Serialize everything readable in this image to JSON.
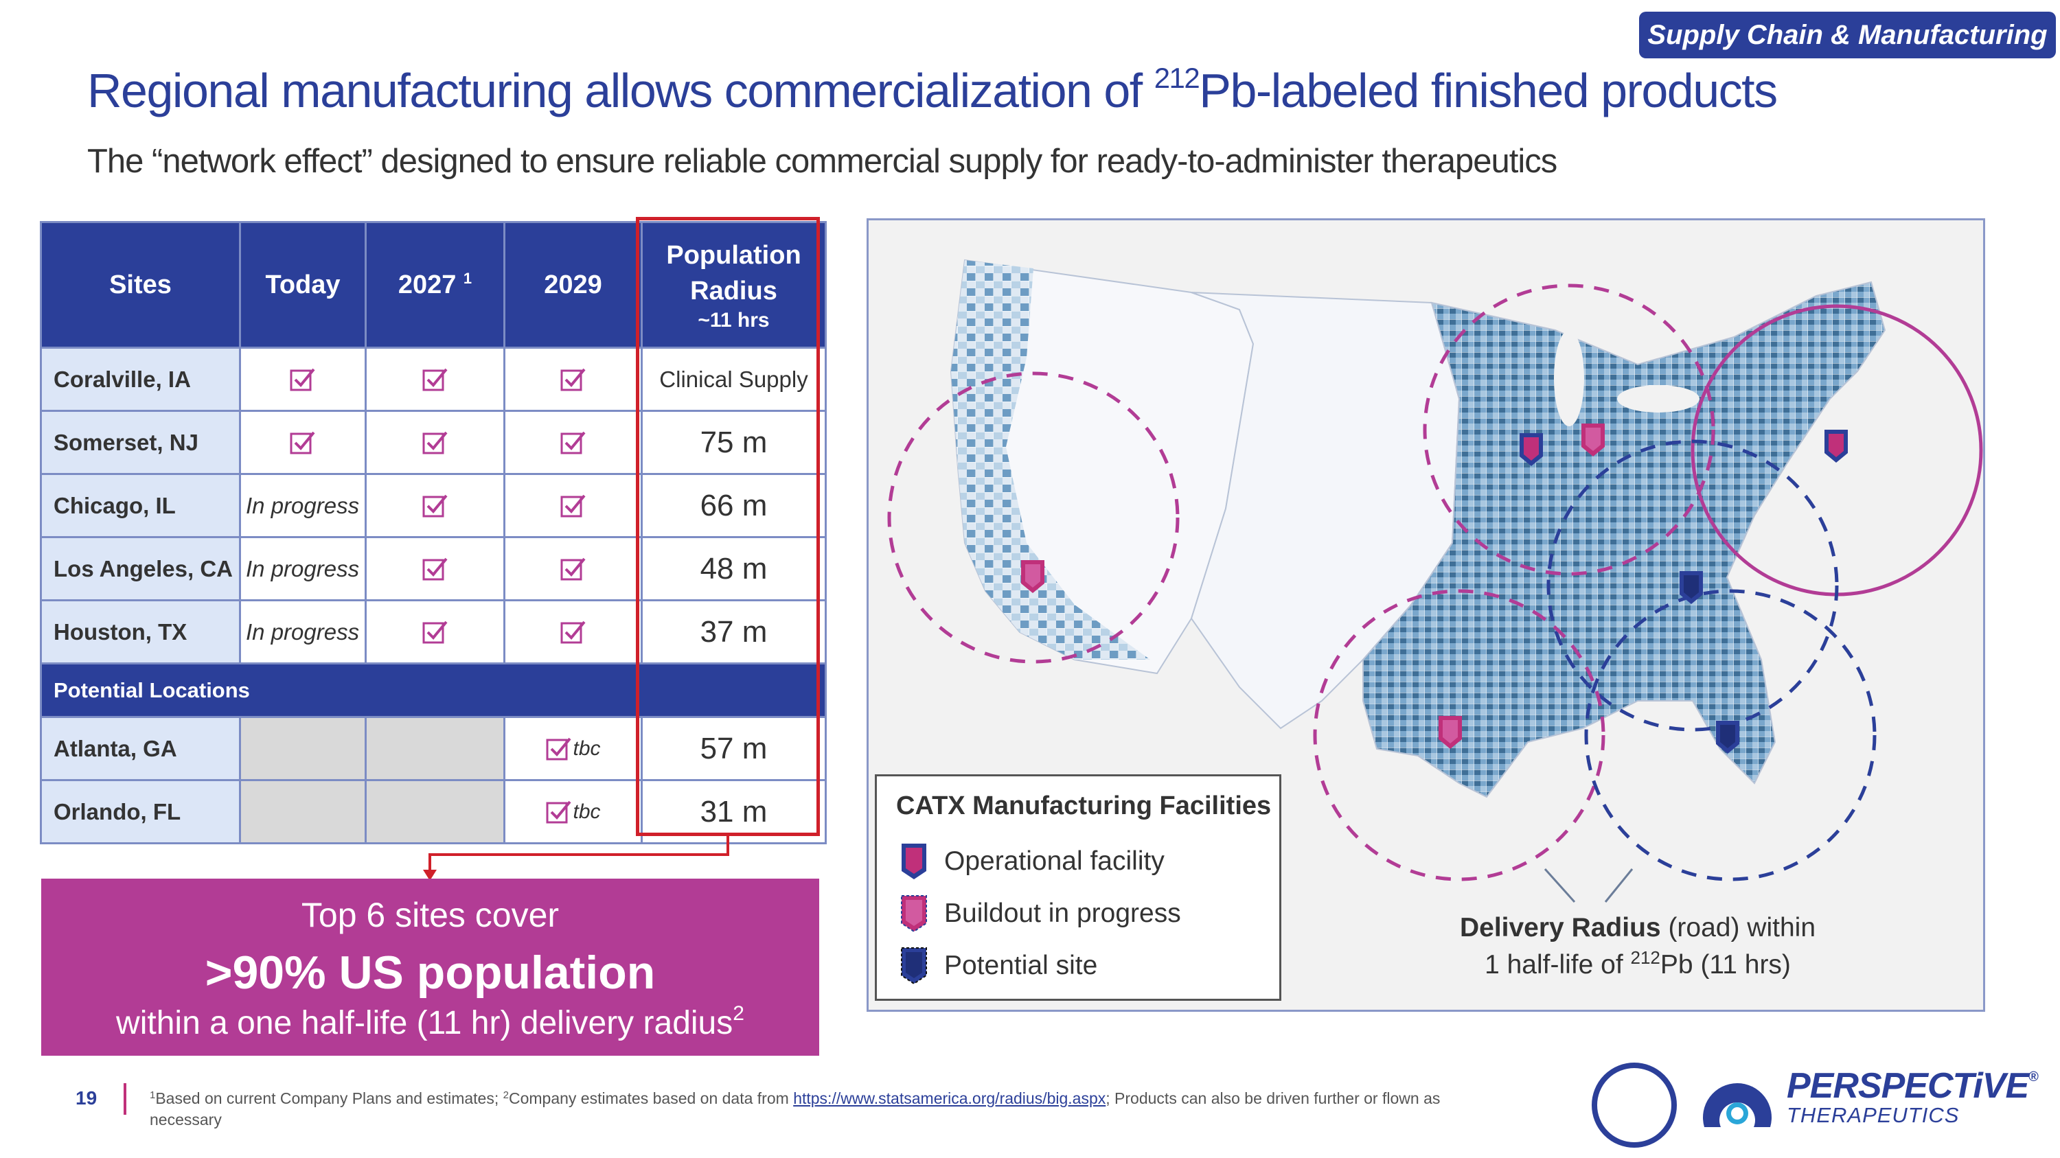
{
  "header": {
    "tag": "Supply Chain & Manufacturing",
    "title_pre": "Regional manufacturing allows commercialization of ",
    "title_iso": "212",
    "title_post": "Pb-labeled finished products",
    "subtitle": "The “network effect” designed to ensure reliable commercial supply for ready-to-administer therapeutics"
  },
  "table": {
    "columns": {
      "sites": "Sites",
      "today": "Today",
      "y2027": "2027",
      "y2027_note": "1",
      "y2029": "2029",
      "pop_l1": "Population",
      "pop_l2": "Radius",
      "pop_l3": "~11 hrs"
    },
    "rows": [
      {
        "site": "Coralville, IA",
        "today": "check",
        "y2027": "check",
        "y2029": "check",
        "population": "Clinical Supply"
      },
      {
        "site": "Somerset, NJ",
        "today": "check",
        "y2027": "check",
        "y2029": "check",
        "population": "75 m"
      },
      {
        "site": "Chicago, IL",
        "today": "In progress",
        "y2027": "check",
        "y2029": "check",
        "population": "66 m"
      },
      {
        "site": "Los Angeles, CA",
        "today": "In progress",
        "y2027": "check",
        "y2029": "check",
        "population": "48 m"
      },
      {
        "site": "Houston, TX",
        "today": "In progress",
        "y2027": "check",
        "y2029": "check",
        "population": "37 m"
      }
    ],
    "potential_label": "Potential Locations",
    "potential_rows": [
      {
        "site": "Atlanta, GA",
        "y2029_note": "tbc",
        "population": "57 m"
      },
      {
        "site": "Orlando, FL",
        "y2029_note": "tbc",
        "population": "31 m"
      }
    ]
  },
  "callout": {
    "line1": "Top 6 sites cover",
    "line2": ">90% US population",
    "line3": "within a one half-life (11 hr) delivery radius",
    "line3_note": "2"
  },
  "legend": {
    "title": "CATX Manufacturing Facilities",
    "items": [
      {
        "label": "Operational facility",
        "color": "#c0307a"
      },
      {
        "label": "Buildout in progress",
        "color": "#c0307a"
      },
      {
        "label": "Potential site",
        "color": "#2b3f99"
      }
    ]
  },
  "delivery": {
    "bold": "Delivery Radius",
    "rest": " (road) within",
    "line2_pre": "1 half-life of ",
    "iso": "212",
    "line2_post": "Pb (11 hrs)"
  },
  "footer": {
    "page": "19",
    "note1_mark": "1",
    "note1": "Based on current Company Plans and estimates; ",
    "note2_mark": "2",
    "note2": "Company estimates based on data from ",
    "link": "https://www.statsamerica.org/radius/big.aspx",
    "note_end": "; Products can also be driven further or flown as necessary"
  },
  "brand": {
    "name": "PERSPECTiVE",
    "mark": "®",
    "sub": "THERAPEUTICS"
  },
  "colors": {
    "navy": "#2b3f99",
    "magenta": "#b23c95",
    "red": "#d0202a",
    "site_bg": "#dce6f7"
  }
}
